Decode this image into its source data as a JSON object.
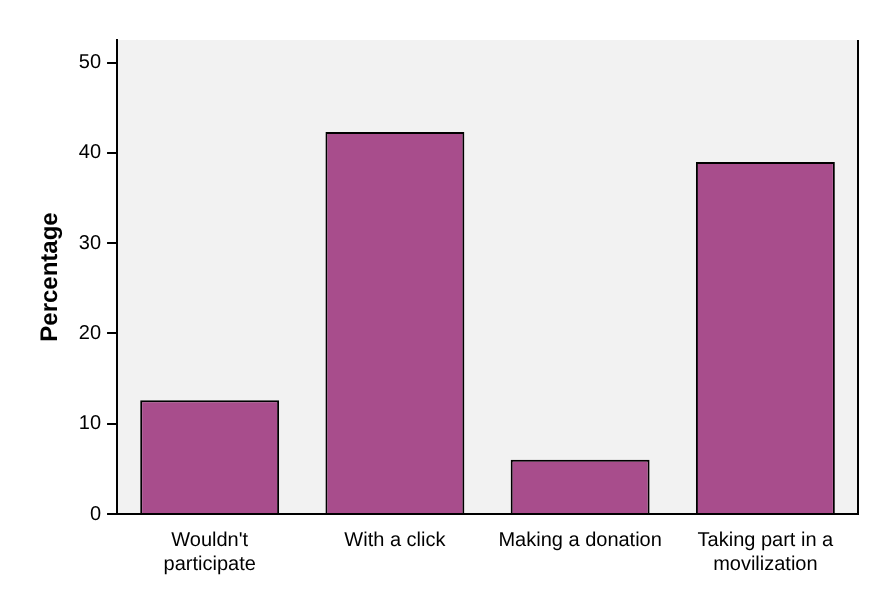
{
  "chart_data": {
    "type": "bar",
    "ylabel": "Percentage",
    "categories": [
      "Wouldn't participate",
      "With a click",
      "Making a donation",
      "Taking part in a movilization"
    ],
    "values": [
      12.6,
      42.3,
      6.0,
      39.0
    ],
    "color": "#a84d8c",
    "ylim": [
      0,
      52.5
    ],
    "yticks": [
      0,
      10,
      20,
      30,
      40,
      50
    ],
    "grid": false,
    "legend": false
  }
}
